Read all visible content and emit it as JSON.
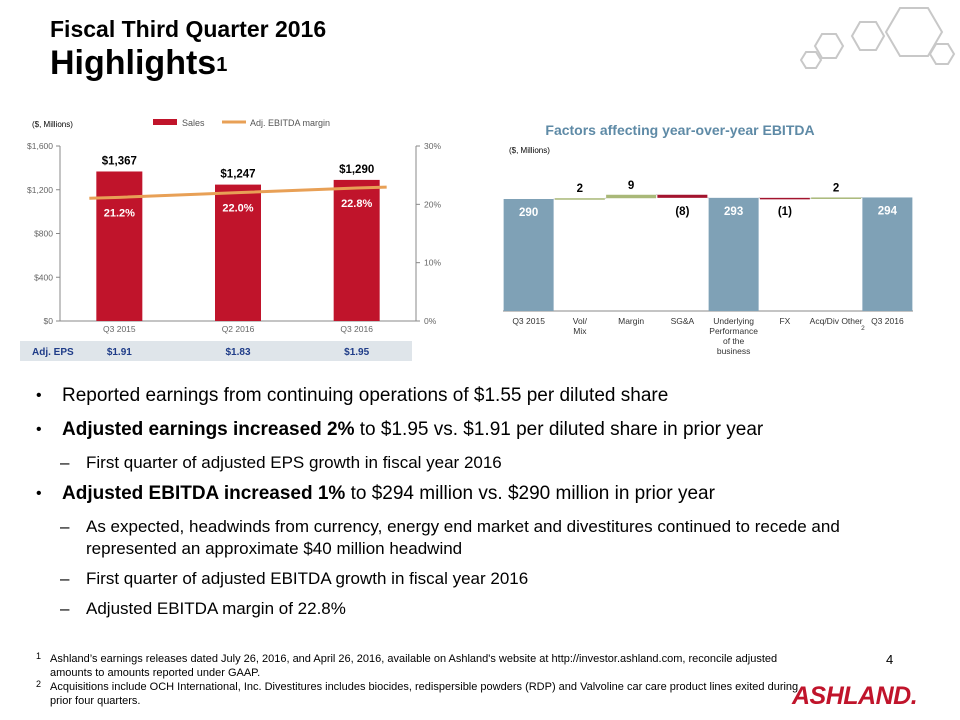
{
  "header": {
    "title_line1": "Fiscal Third Quarter 2016",
    "title_line2": "Highlights",
    "title_superscript": "1"
  },
  "chart_data": [
    {
      "type": "bar",
      "title": "",
      "unit_label": "($, Millions)",
      "categories": [
        "Q3 2015",
        "Q2 2016",
        "Q3 2016"
      ],
      "series": [
        {
          "name": "Sales",
          "kind": "bar",
          "axis": "left",
          "values": [
            1367,
            1247,
            1290
          ],
          "labels": [
            "$1,367",
            "$1,247",
            "$1,290"
          ],
          "color": "#c0142b"
        },
        {
          "name": "Adj. EBITDA margin",
          "kind": "line",
          "axis": "right",
          "values": [
            21.2,
            22.0,
            22.8
          ],
          "labels": [
            "21.2%",
            "22.0%",
            "22.8%"
          ],
          "color": "#e8a056"
        }
      ],
      "ylim": [
        0,
        1600
      ],
      "yticks": [
        "$0",
        "$400",
        "$800",
        "$1,200",
        "$1,600"
      ],
      "ytick_values": [
        0,
        400,
        800,
        1200,
        1600
      ],
      "y2lim": [
        0,
        30
      ],
      "y2ticks": [
        "0%",
        "10%",
        "20%",
        "30%"
      ],
      "y2tick_values": [
        0,
        10,
        20,
        30
      ],
      "eps_row": {
        "label": "Adj. EPS",
        "values": [
          "$1.91",
          "$1.83",
          "$1.95"
        ]
      },
      "legend": "top"
    },
    {
      "type": "waterfall",
      "title": "Factors affecting year-over-year EBITDA",
      "unit_label": "($, Millions)",
      "categories": [
        "Q3 2015",
        "Vol/ Mix",
        "Margin",
        "SG&A",
        "Underlying Performance of the business",
        "FX",
        "Acq/Div Other",
        "Q3 2016"
      ],
      "category_superscripts": [
        "",
        "",
        "",
        "",
        "",
        "",
        "2",
        ""
      ],
      "steps": [
        {
          "value": 290,
          "kind": "total",
          "label": "290"
        },
        {
          "value": 2,
          "kind": "increase",
          "label": "2"
        },
        {
          "value": 9,
          "kind": "increase",
          "label": "9"
        },
        {
          "value": -8,
          "kind": "decrease",
          "label": "(8)"
        },
        {
          "value": 293,
          "kind": "total",
          "label": "293"
        },
        {
          "value": -1,
          "kind": "decrease",
          "label": "(1)"
        },
        {
          "value": 2,
          "kind": "increase",
          "label": "2"
        },
        {
          "value": 294,
          "kind": "total",
          "label": "294"
        }
      ],
      "colors": {
        "total": "#7fa1b6",
        "increase": "#a9b878",
        "decrease": "#a3142e"
      }
    }
  ],
  "bullets": [
    {
      "level": 1,
      "mark": "•",
      "bold": "",
      "text": "Reported earnings from continuing operations of $1.55 per diluted share"
    },
    {
      "level": 1,
      "mark": "•",
      "bold": "Adjusted earnings increased 2%",
      "text": " to $1.95 vs. $1.91 per diluted share in prior year"
    },
    {
      "level": 2,
      "mark": "–",
      "bold": "",
      "text": "First quarter of adjusted EPS growth in fiscal year 2016"
    },
    {
      "level": 1,
      "mark": "•",
      "bold": "Adjusted EBITDA increased 1%",
      "text": " to $294 million vs. $290 million in prior year"
    },
    {
      "level": 2,
      "mark": "–",
      "bold": "",
      "text": "As expected, headwinds from currency, energy end market and divestitures continued to recede and represented an approximate $40 million headwind"
    },
    {
      "level": 2,
      "mark": "–",
      "bold": "",
      "text": "First quarter of adjusted EBITDA growth in fiscal year 2016"
    },
    {
      "level": 2,
      "mark": "–",
      "bold": "",
      "text": "Adjusted EBITDA margin of 22.8%"
    }
  ],
  "footnotes": [
    {
      "num": "1",
      "text": "Ashland’s earnings releases dated July 26, 2016, and April 26, 2016, available on Ashland's website at http://investor.ashland.com, reconcile adjusted amounts to amounts reported under GAAP."
    },
    {
      "num": "2",
      "text": "Acquisitions include OCH International, Inc. Divestitures includes biocides, redispersible powders (RDP) and Valvoline car care product lines exited during prior four quarters."
    }
  ],
  "page_number": "4",
  "logo_text": "ASHLAND.",
  "colors": {
    "sales": "#c0142b",
    "margin_line": "#e8a056",
    "eps_bg": "#dfe5ea",
    "total": "#7fa1b6",
    "title_blue": "#5e8aa6"
  }
}
